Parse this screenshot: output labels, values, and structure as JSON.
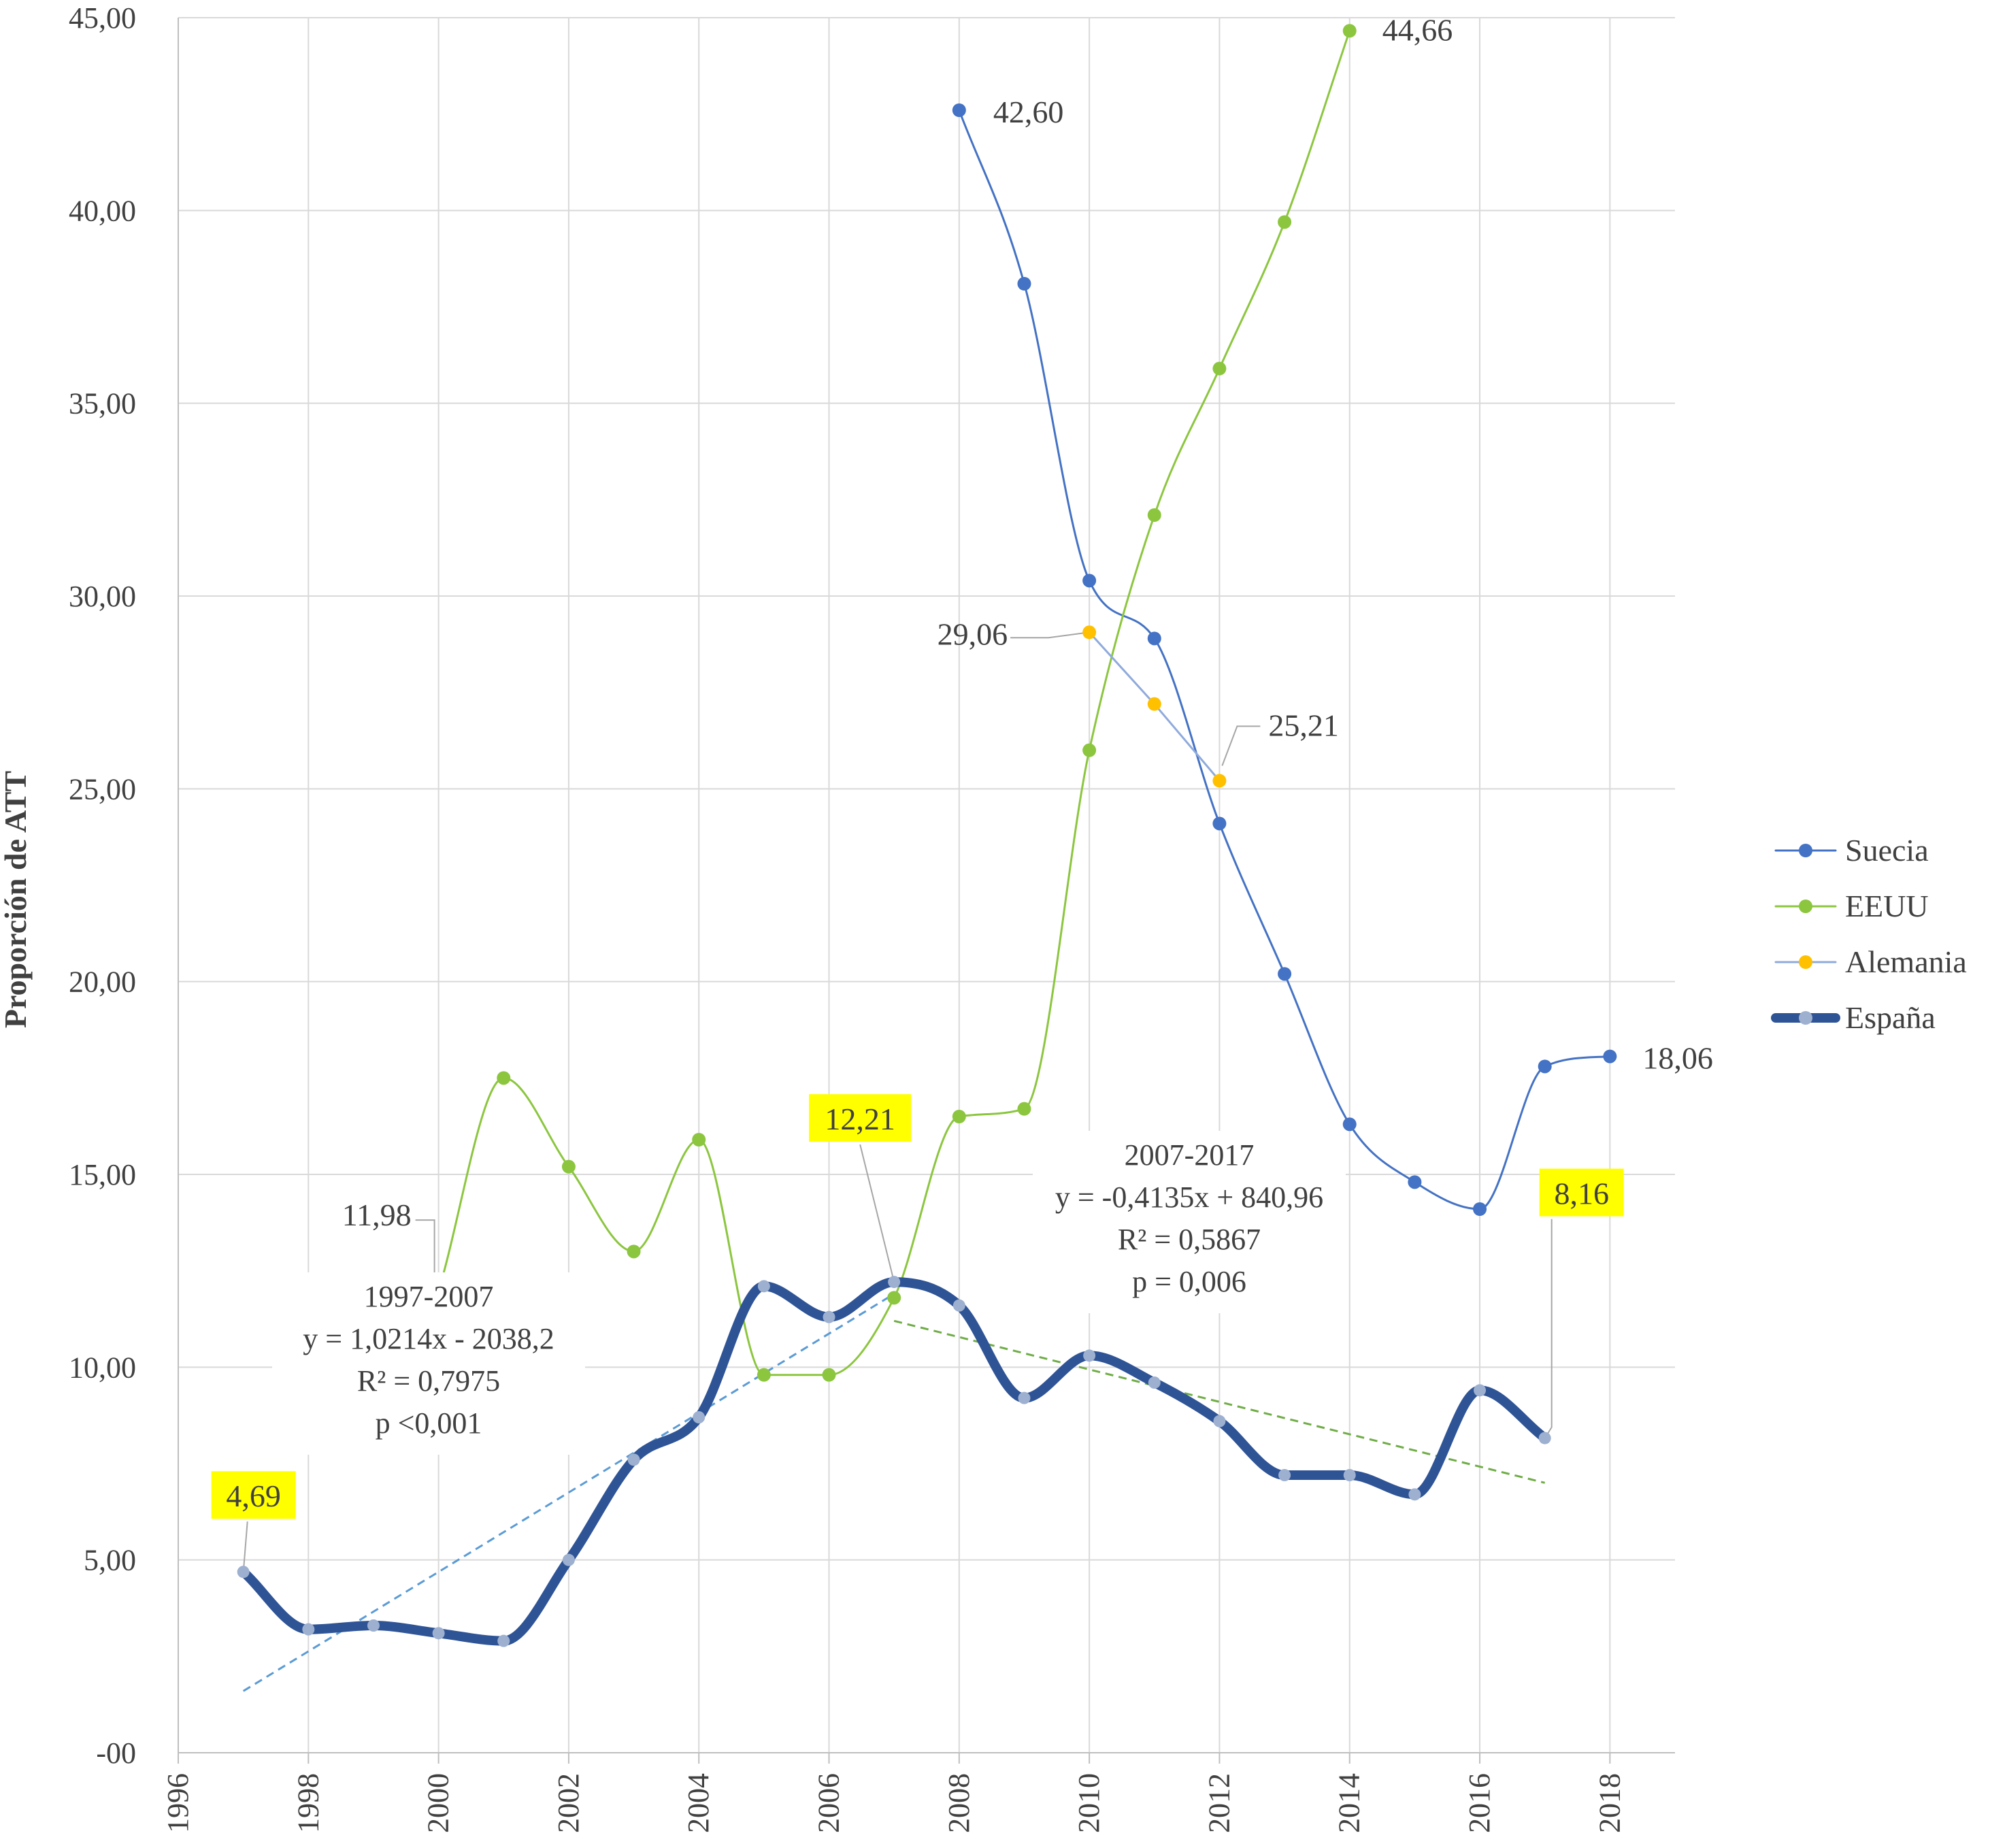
{
  "chart_data": {
    "type": "line",
    "title": "",
    "xlabel": "",
    "ylabel": "Proporción de ATT",
    "xlim": [
      1996,
      2019
    ],
    "ylim": [
      0,
      45
    ],
    "x_ticks": [
      1996,
      1998,
      2000,
      2002,
      2004,
      2006,
      2008,
      2010,
      2012,
      2014,
      2016,
      2018
    ],
    "x_tick_labels": [
      "1996",
      "1998",
      "2000",
      "2002",
      "2004",
      "2006",
      "2008",
      "2010",
      "2012",
      "2014",
      "2016",
      "2018"
    ],
    "y_ticks": [
      0,
      5,
      10,
      15,
      20,
      25,
      30,
      35,
      40,
      45
    ],
    "y_tick_labels": [
      "-00",
      "5,00",
      "10,00",
      "15,00",
      "20,00",
      "25,00",
      "30,00",
      "35,00",
      "40,00",
      "45,00"
    ],
    "grid": true,
    "legend_position": "right",
    "series": [
      {
        "name": "Suecia",
        "color": "#4472C4",
        "x": [
          2008,
          2009,
          2010,
          2011,
          2012,
          2013,
          2014,
          2015,
          2016,
          2017,
          2018
        ],
        "y": [
          42.6,
          38.1,
          30.4,
          28.9,
          24.1,
          20.2,
          16.3,
          14.8,
          14.1,
          17.8,
          18.06
        ]
      },
      {
        "name": "EEUU",
        "color": "#8CC63F",
        "x": [
          2000,
          2001,
          2002,
          2003,
          2004,
          2005,
          2006,
          2007,
          2008,
          2009,
          2010,
          2011,
          2012,
          2013,
          2014
        ],
        "y": [
          11.98,
          17.5,
          15.2,
          13.0,
          15.9,
          9.8,
          9.8,
          11.8,
          16.5,
          16.7,
          26.0,
          32.1,
          35.9,
          39.7,
          44.66
        ]
      },
      {
        "name": "Alemania",
        "color": "#FFC000",
        "line_color": "#8FAADC",
        "x": [
          2010,
          2011,
          2012
        ],
        "y": [
          29.06,
          27.2,
          25.21
        ]
      },
      {
        "name": "España",
        "color": "#2F5496",
        "marker_color": "#9DB0D0",
        "x": [
          1997,
          1998,
          1999,
          2000,
          2001,
          2002,
          2003,
          2004,
          2005,
          2006,
          2007,
          2008,
          2009,
          2010,
          2011,
          2012,
          2013,
          2014,
          2015,
          2016,
          2017
        ],
        "y": [
          4.69,
          3.2,
          3.3,
          3.1,
          2.9,
          5.0,
          7.6,
          8.7,
          12.1,
          11.3,
          12.21,
          11.6,
          9.2,
          10.3,
          9.6,
          8.6,
          7.2,
          7.2,
          6.7,
          9.4,
          8.16
        ]
      }
    ],
    "data_labels": [
      {
        "series": "Suecia",
        "x": 2008,
        "text": "42,60",
        "highlight": false
      },
      {
        "series": "Suecia",
        "x": 2018,
        "text": "18,06",
        "highlight": false
      },
      {
        "series": "EEUU",
        "x": 2014,
        "text": "44,66",
        "highlight": false
      },
      {
        "series": "EEUU",
        "x": 2000,
        "text": "11,98",
        "highlight": false
      },
      {
        "series": "Alemania",
        "x": 2010,
        "text": "29,06",
        "highlight": false
      },
      {
        "series": "Alemania",
        "x": 2012,
        "text": "25,21",
        "highlight": false
      },
      {
        "series": "España",
        "x": 1997,
        "text": "4,69",
        "highlight": true
      },
      {
        "series": "España",
        "x": 2007,
        "text": "12,21",
        "highlight": true
      },
      {
        "series": "España",
        "x": 2017,
        "text": "8,16",
        "highlight": true
      }
    ],
    "trendlines": [
      {
        "series": "España",
        "period": "1997-2007",
        "color": "#5B9BD5",
        "x": [
          1997,
          2007
        ],
        "y": [
          1.6,
          11.9
        ],
        "annotation": [
          "1997-2007",
          "y = 1,0214x  - 2038,2",
          "R² = 0,7975",
          "p <0,001"
        ]
      },
      {
        "series": "España",
        "period": "2007-2017",
        "color": "#70AD47",
        "x": [
          2007,
          2017
        ],
        "y": [
          11.2,
          7.0
        ],
        "annotation": [
          "2007-2017",
          "y = -0,4135x  + 840,96",
          "R² = 0,5867",
          "p = 0,006"
        ]
      }
    ]
  }
}
